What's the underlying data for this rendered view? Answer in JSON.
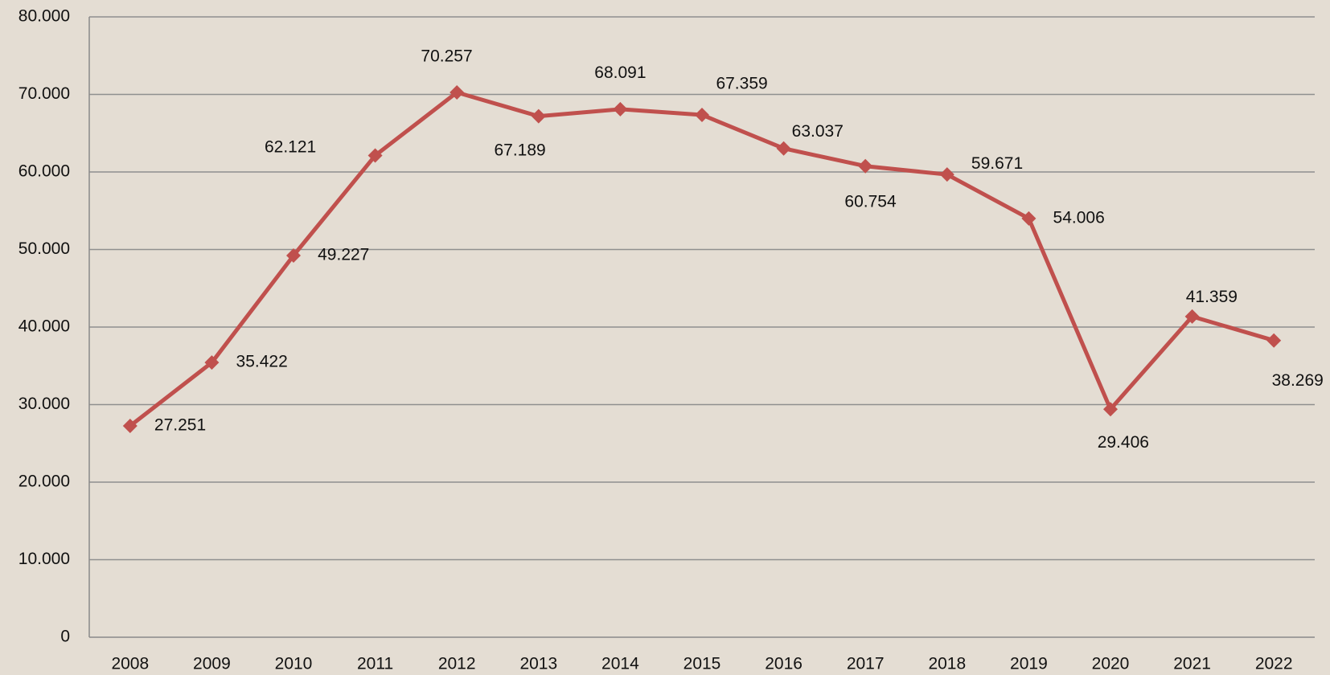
{
  "chart_data": {
    "type": "line",
    "categories": [
      "2008",
      "2009",
      "2010",
      "2011",
      "2012",
      "2013",
      "2014",
      "2015",
      "2016",
      "2017",
      "2018",
      "2019",
      "2020",
      "2021",
      "2022"
    ],
    "series": [
      {
        "color": "#c0504d",
        "values": [
          27251,
          35422,
          49227,
          62121,
          70257,
          67189,
          68091,
          67359,
          63037,
          60754,
          59671,
          54006,
          29406,
          41359,
          38269
        ],
        "value_labels": [
          "27.251",
          "35.422",
          "49.227",
          "62.121",
          "70.257",
          "67.189",
          "68.091",
          "67.359",
          "63.037",
          "60.754",
          "59.671",
          "54.006",
          "29.406",
          "41.359",
          "38.269"
        ]
      }
    ],
    "ylim": [
      0,
      80000
    ],
    "yticks": [
      0,
      {
        "value": 10000,
        "label": "10.000"
      },
      {
        "value": 20000,
        "label": "20.000"
      },
      {
        "value": 30000,
        "label": "30.000"
      },
      {
        "value": 40000,
        "label": "40.000"
      },
      {
        "value": 50000,
        "label": "50.000"
      },
      {
        "value": 60000,
        "label": "60.000"
      },
      {
        "value": 70000,
        "label": "70.000"
      },
      {
        "value": 80000,
        "label": "80.000"
      }
    ],
    "grid": true
  }
}
